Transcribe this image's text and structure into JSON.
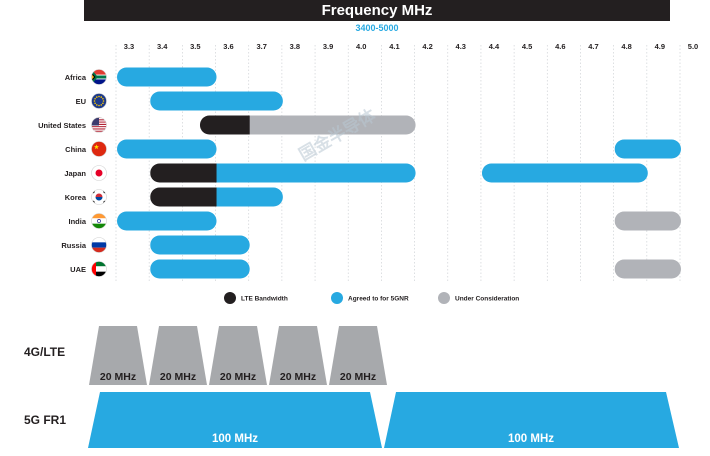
{
  "chart_data": {
    "type": "bar",
    "title": "Frequency MHz",
    "subtitle": "3400-5000",
    "x_unit": "GHz",
    "x_ticks": [
      "3.3",
      "3.4",
      "3.5",
      "3.6",
      "3.7",
      "3.8",
      "3.9",
      "4.0",
      "4.1",
      "4.2",
      "4.3",
      "4.4",
      "4.5",
      "4.6",
      "4.7",
      "4.8",
      "4.9",
      "5.0"
    ],
    "xlim": [
      3.3,
      5.0
    ],
    "countries": [
      {
        "name": "Africa",
        "flag": "south-africa-flag-icon",
        "segments": [
          {
            "start": 3.3,
            "end": 3.6,
            "status": "agreed"
          }
        ]
      },
      {
        "name": "EU",
        "flag": "eu-flag-icon",
        "segments": [
          {
            "start": 3.4,
            "end": 3.8,
            "status": "agreed"
          }
        ]
      },
      {
        "name": "United States",
        "flag": "us-flag-icon",
        "segments": [
          {
            "start": 3.55,
            "end": 3.7,
            "status": "lte"
          },
          {
            "start": 3.7,
            "end": 4.2,
            "status": "consideration"
          }
        ]
      },
      {
        "name": "China",
        "flag": "china-flag-icon",
        "segments": [
          {
            "start": 3.3,
            "end": 3.6,
            "status": "agreed"
          },
          {
            "start": 4.8,
            "end": 5.0,
            "status": "agreed"
          }
        ]
      },
      {
        "name": "Japan",
        "flag": "japan-flag-icon",
        "segments": [
          {
            "start": 3.4,
            "end": 3.6,
            "status": "lte"
          },
          {
            "start": 3.6,
            "end": 4.2,
            "status": "agreed"
          },
          {
            "start": 4.4,
            "end": 4.9,
            "status": "agreed"
          }
        ]
      },
      {
        "name": "Korea",
        "flag": "korea-flag-icon",
        "segments": [
          {
            "start": 3.4,
            "end": 3.6,
            "status": "lte"
          },
          {
            "start": 3.6,
            "end": 3.8,
            "status": "agreed"
          }
        ]
      },
      {
        "name": "India",
        "flag": "india-flag-icon",
        "segments": [
          {
            "start": 3.3,
            "end": 3.6,
            "status": "agreed"
          },
          {
            "start": 4.8,
            "end": 5.0,
            "status": "consideration"
          }
        ]
      },
      {
        "name": "Russia",
        "flag": "russia-flag-icon",
        "segments": [
          {
            "start": 3.4,
            "end": 3.7,
            "status": "agreed"
          }
        ]
      },
      {
        "name": "UAE",
        "flag": "uae-flag-icon",
        "segments": [
          {
            "start": 3.4,
            "end": 3.7,
            "status": "agreed"
          },
          {
            "start": 4.8,
            "end": 5.0,
            "status": "consideration"
          }
        ]
      }
    ],
    "legend": [
      {
        "key": "lte",
        "label": "LTE Bandwidth",
        "color": "#231f20"
      },
      {
        "key": "agreed",
        "label": "Agreed to for 5GNR",
        "color": "#27a9e1"
      },
      {
        "key": "consideration",
        "label": "Under Consideration",
        "color": "#b1b3b8"
      }
    ],
    "legend_position": "bottom-center",
    "grid": "dashed vertical"
  },
  "bandwidth": {
    "lte_row_label": "4G/LTE",
    "lte_channels": [
      "20 MHz",
      "20 MHz",
      "20 MHz",
      "20 MHz",
      "20 MHz"
    ],
    "nr_row_label": "5G FR1",
    "nr_channels": [
      "100 MHz",
      "100 MHz"
    ]
  },
  "watermark": "国金半导体",
  "colors": {
    "lte": "#231f20",
    "agreed": "#27a9e1",
    "consideration": "#b1b3b8",
    "channel_gray": "#a7a9ac",
    "dark": "#231f20"
  }
}
